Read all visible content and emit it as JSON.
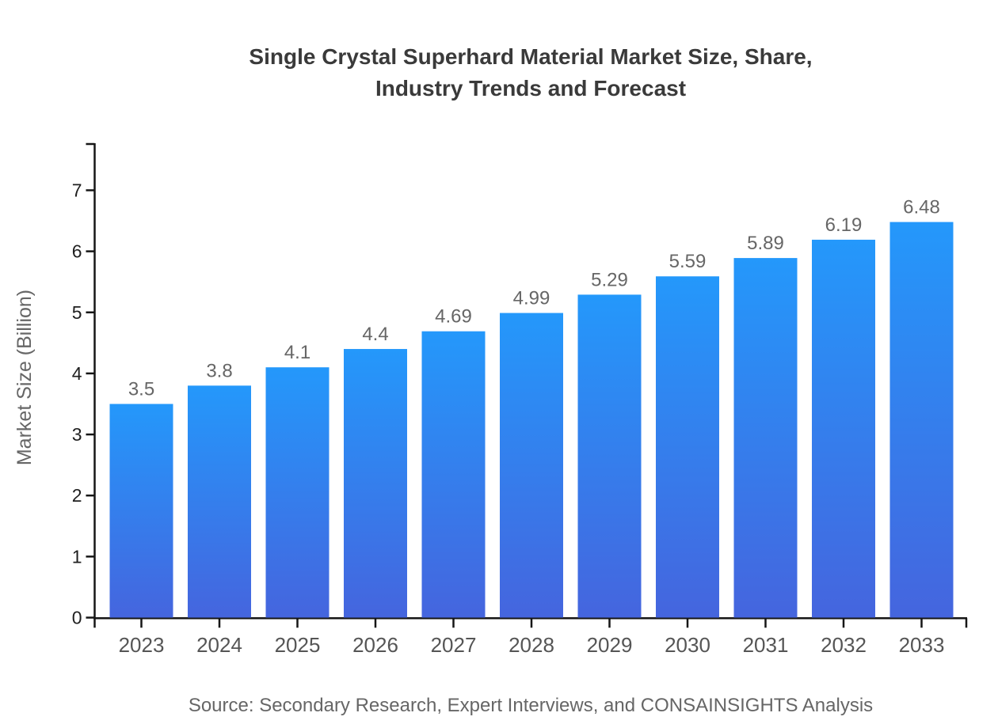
{
  "title_lines": [
    "Single Crystal Superhard Material Market Size, Share,",
    "Industry Trends and Forecast"
  ],
  "source_note": "Source: Secondary Research, Expert Interviews, and CONSAINSIGHTS Analysis",
  "colors": {
    "bar_gradient_top": "#2498fb",
    "bar_gradient_bottom": "#4565de",
    "axis": "#161616",
    "title_text": "#3a3a3a",
    "value_label": "#666666",
    "x_tick_label": "#555555",
    "y_tick_label": "#1f1f1f",
    "axis_title": "#666666",
    "source_text": "#666666",
    "background": "#ffffff"
  },
  "chart_data": {
    "type": "bar",
    "title": "Single Crystal Superhard Material Market Size, Share, Industry Trends and Forecast",
    "categories": [
      "2023",
      "2024",
      "2025",
      "2026",
      "2027",
      "2028",
      "2029",
      "2030",
      "2031",
      "2032",
      "2033"
    ],
    "values": [
      3.5,
      3.8,
      4.1,
      4.4,
      4.69,
      4.99,
      5.29,
      5.59,
      5.89,
      6.19,
      6.48
    ],
    "value_labels": [
      "3.5",
      "3.8",
      "4.1",
      "4.4",
      "4.69",
      "4.99",
      "5.29",
      "5.59",
      "5.89",
      "6.19",
      "6.48"
    ],
    "xlabel": "",
    "ylabel": "Market Size (Billion)",
    "yticks": [
      0,
      1,
      2,
      3,
      4,
      5,
      6,
      7
    ],
    "ylim": [
      0,
      7.8
    ],
    "grid": false,
    "legend": false,
    "value_labels_shown": true
  }
}
